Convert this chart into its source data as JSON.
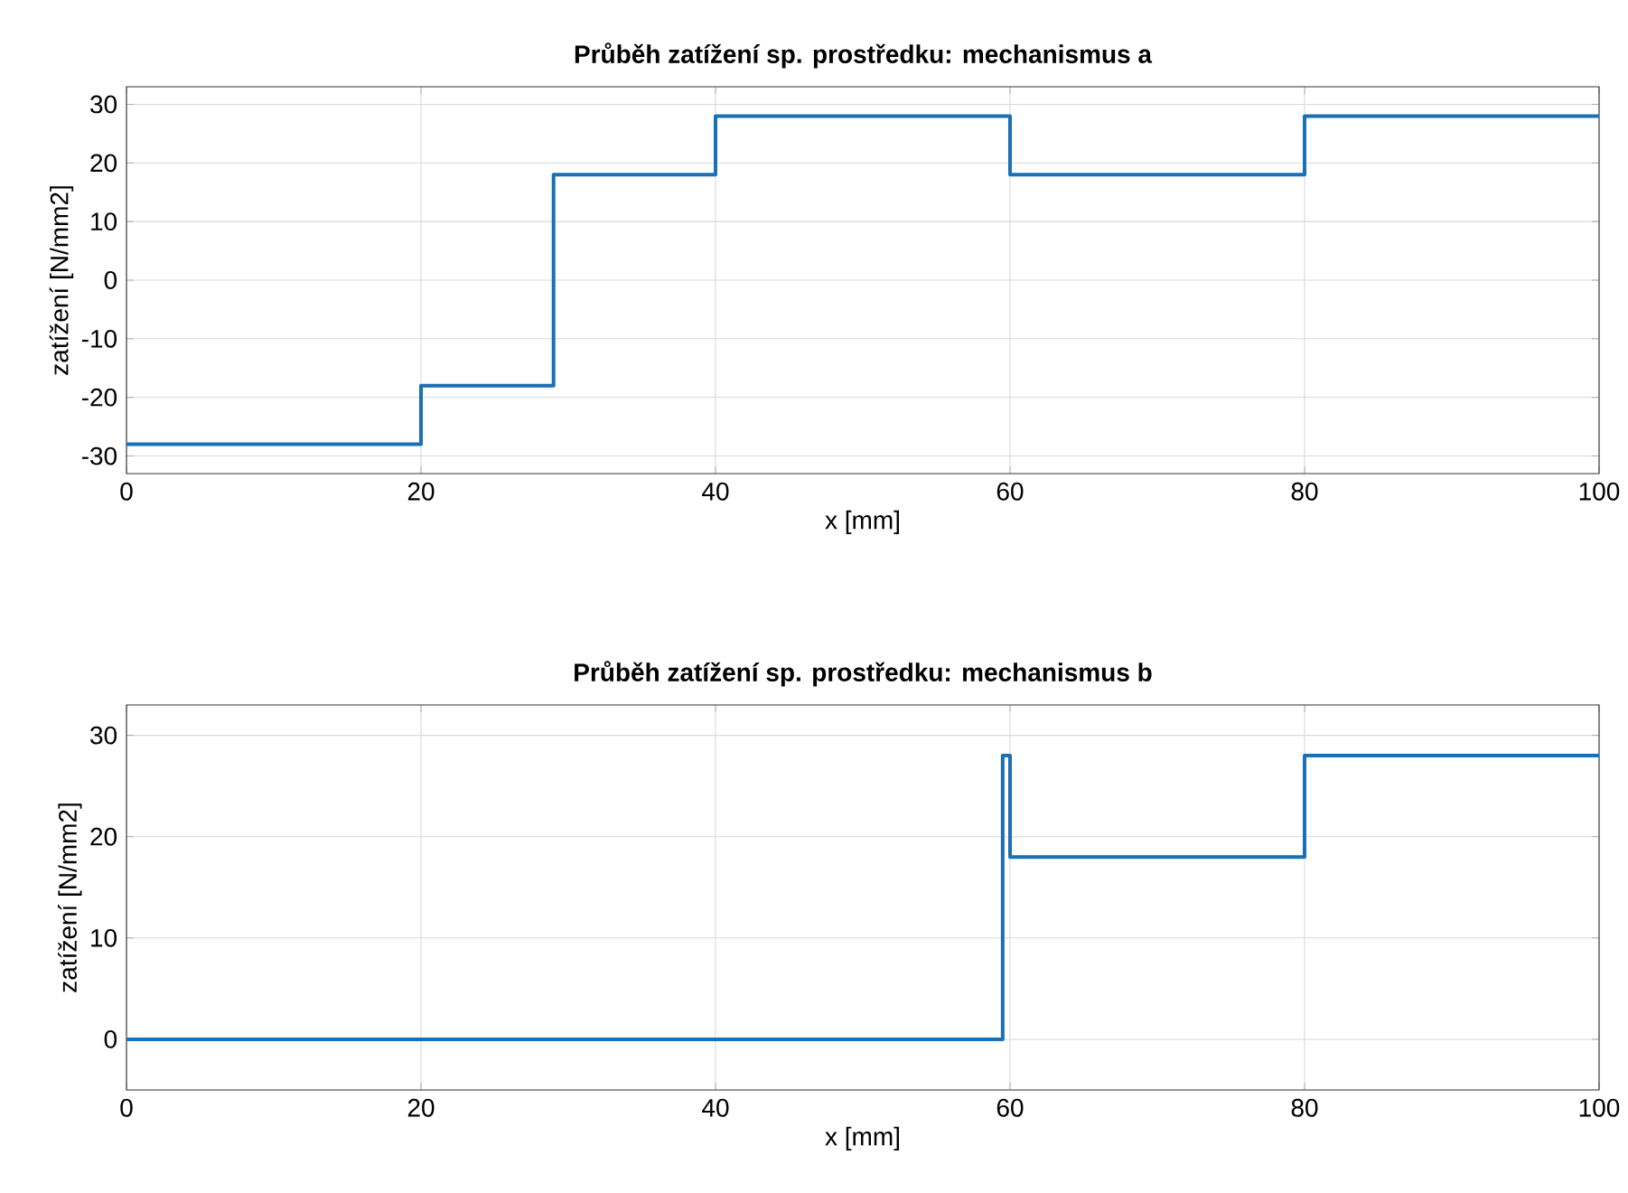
{
  "chart_data": [
    {
      "type": "step",
      "title": "Průběh zatížení sp. prostředku: mechanismus a",
      "xlabel": "x [mm]",
      "ylabel": "zatížení [N/mm2]",
      "series": [
        {
          "color": "#1a6fb5",
          "x": [
            0,
            20,
            29,
            40,
            60,
            80,
            100
          ],
          "values": [
            -28,
            -18,
            18,
            28,
            18,
            28,
            28
          ]
        }
      ],
      "xlim": [
        0,
        100
      ],
      "xticks": [
        0,
        20,
        40,
        60,
        80,
        100
      ],
      "ylim": [
        -33,
        33
      ],
      "yticks": [
        -30,
        -20,
        -10,
        0,
        10,
        20,
        30
      ],
      "grid": true,
      "marker": "none",
      "line_style": "solid"
    },
    {
      "type": "step",
      "title": "Průběh zatížení sp. prostředku: mechanismus b",
      "xlabel": "x [mm]",
      "ylabel": "zatížení [N/mm2]",
      "series": [
        {
          "color": "#1a6fb5",
          "x": [
            0,
            59.5,
            60,
            80,
            100
          ],
          "values": [
            0,
            28,
            18,
            28,
            28
          ]
        }
      ],
      "xlim": [
        0,
        100
      ],
      "xticks": [
        0,
        20,
        40,
        60,
        80,
        100
      ],
      "ylim": [
        -5,
        33
      ],
      "yticks": [
        0,
        10,
        20,
        30
      ],
      "grid": true,
      "marker": "none",
      "line_style": "solid"
    }
  ]
}
